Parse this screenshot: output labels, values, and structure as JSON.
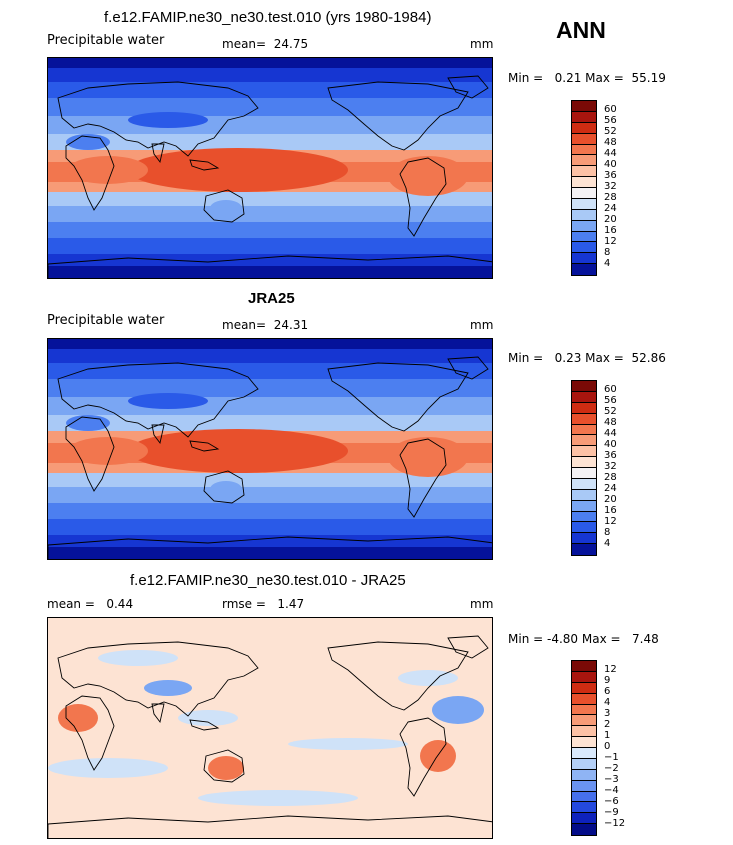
{
  "season": "ANN",
  "panels": [
    {
      "id": "model",
      "title": "f.e12.FAMIP.ne30_ne30.test.010 (yrs 1980-1984)",
      "variable": "Precipitable water",
      "stat1_label": "mean=",
      "stat1_value": "24.75",
      "stat2_label": "",
      "stat2_value": "",
      "units": "mm",
      "min_label": "Min =",
      "min_value": "0.21",
      "max_label": "Max =",
      "max_value": "55.19"
    },
    {
      "id": "obs",
      "title": "JRA25",
      "variable": "Precipitable water",
      "stat1_label": "mean=",
      "stat1_value": "24.31",
      "stat2_label": "",
      "stat2_value": "",
      "units": "mm",
      "min_label": "Min =",
      "min_value": "0.23",
      "max_label": "Max =",
      "max_value": "52.86"
    },
    {
      "id": "diff",
      "title": "f.e12.FAMIP.ne30_ne30.test.010 - JRA25",
      "variable": "",
      "stat1_label": "mean =",
      "stat1_value": "0.44",
      "stat2_label": "rmse =",
      "stat2_value": "1.47",
      "units": "mm",
      "min_label": "Min =",
      "min_value": "-4.80",
      "max_label": "Max =",
      "max_value": "7.48"
    }
  ],
  "colorbars": {
    "field": {
      "labels": [
        "60",
        "56",
        "52",
        "48",
        "44",
        "40",
        "36",
        "32",
        "28",
        "24",
        "20",
        "16",
        "12",
        "8",
        "4"
      ],
      "colors": [
        "#7a0a06",
        "#a8150e",
        "#cf2c12",
        "#e8502c",
        "#f2764e",
        "#f79b77",
        "#fcc1a5",
        "#fde3d3",
        "#f4f2f4",
        "#cfe2f8",
        "#a9c9f6",
        "#7aa6f3",
        "#4c7ff0",
        "#2a5ae8",
        "#1636d2",
        "#05129a"
      ]
    },
    "diff": {
      "labels": [
        "12",
        "9",
        "6",
        "4",
        "3",
        "2",
        "1",
        "0",
        "−1",
        "−2",
        "−3",
        "−4",
        "−6",
        "−9",
        "−12"
      ],
      "colors": [
        "#7a0a06",
        "#a8150e",
        "#cf2c12",
        "#e8502c",
        "#f2764e",
        "#f79b77",
        "#fcc1a5",
        "#fde3d3",
        "#d9e9fb",
        "#b4d0f7",
        "#8fb4f4",
        "#6a93f1",
        "#4670ec",
        "#2449de",
        "#0e22bc",
        "#030c88"
      ]
    }
  },
  "map_colors": {
    "field_bands": [
      "#05129a",
      "#1636d2",
      "#2a5ae8",
      "#4c7ff0",
      "#7aa6f3",
      "#a9c9f6",
      "#f79b77",
      "#f2764e",
      "#e8502c"
    ],
    "diff_base": "#fde3d3",
    "diff_pos": "#f2764e",
    "diff_neg": "#7aa6f3",
    "diff_neg_light": "#cfe2f8"
  }
}
